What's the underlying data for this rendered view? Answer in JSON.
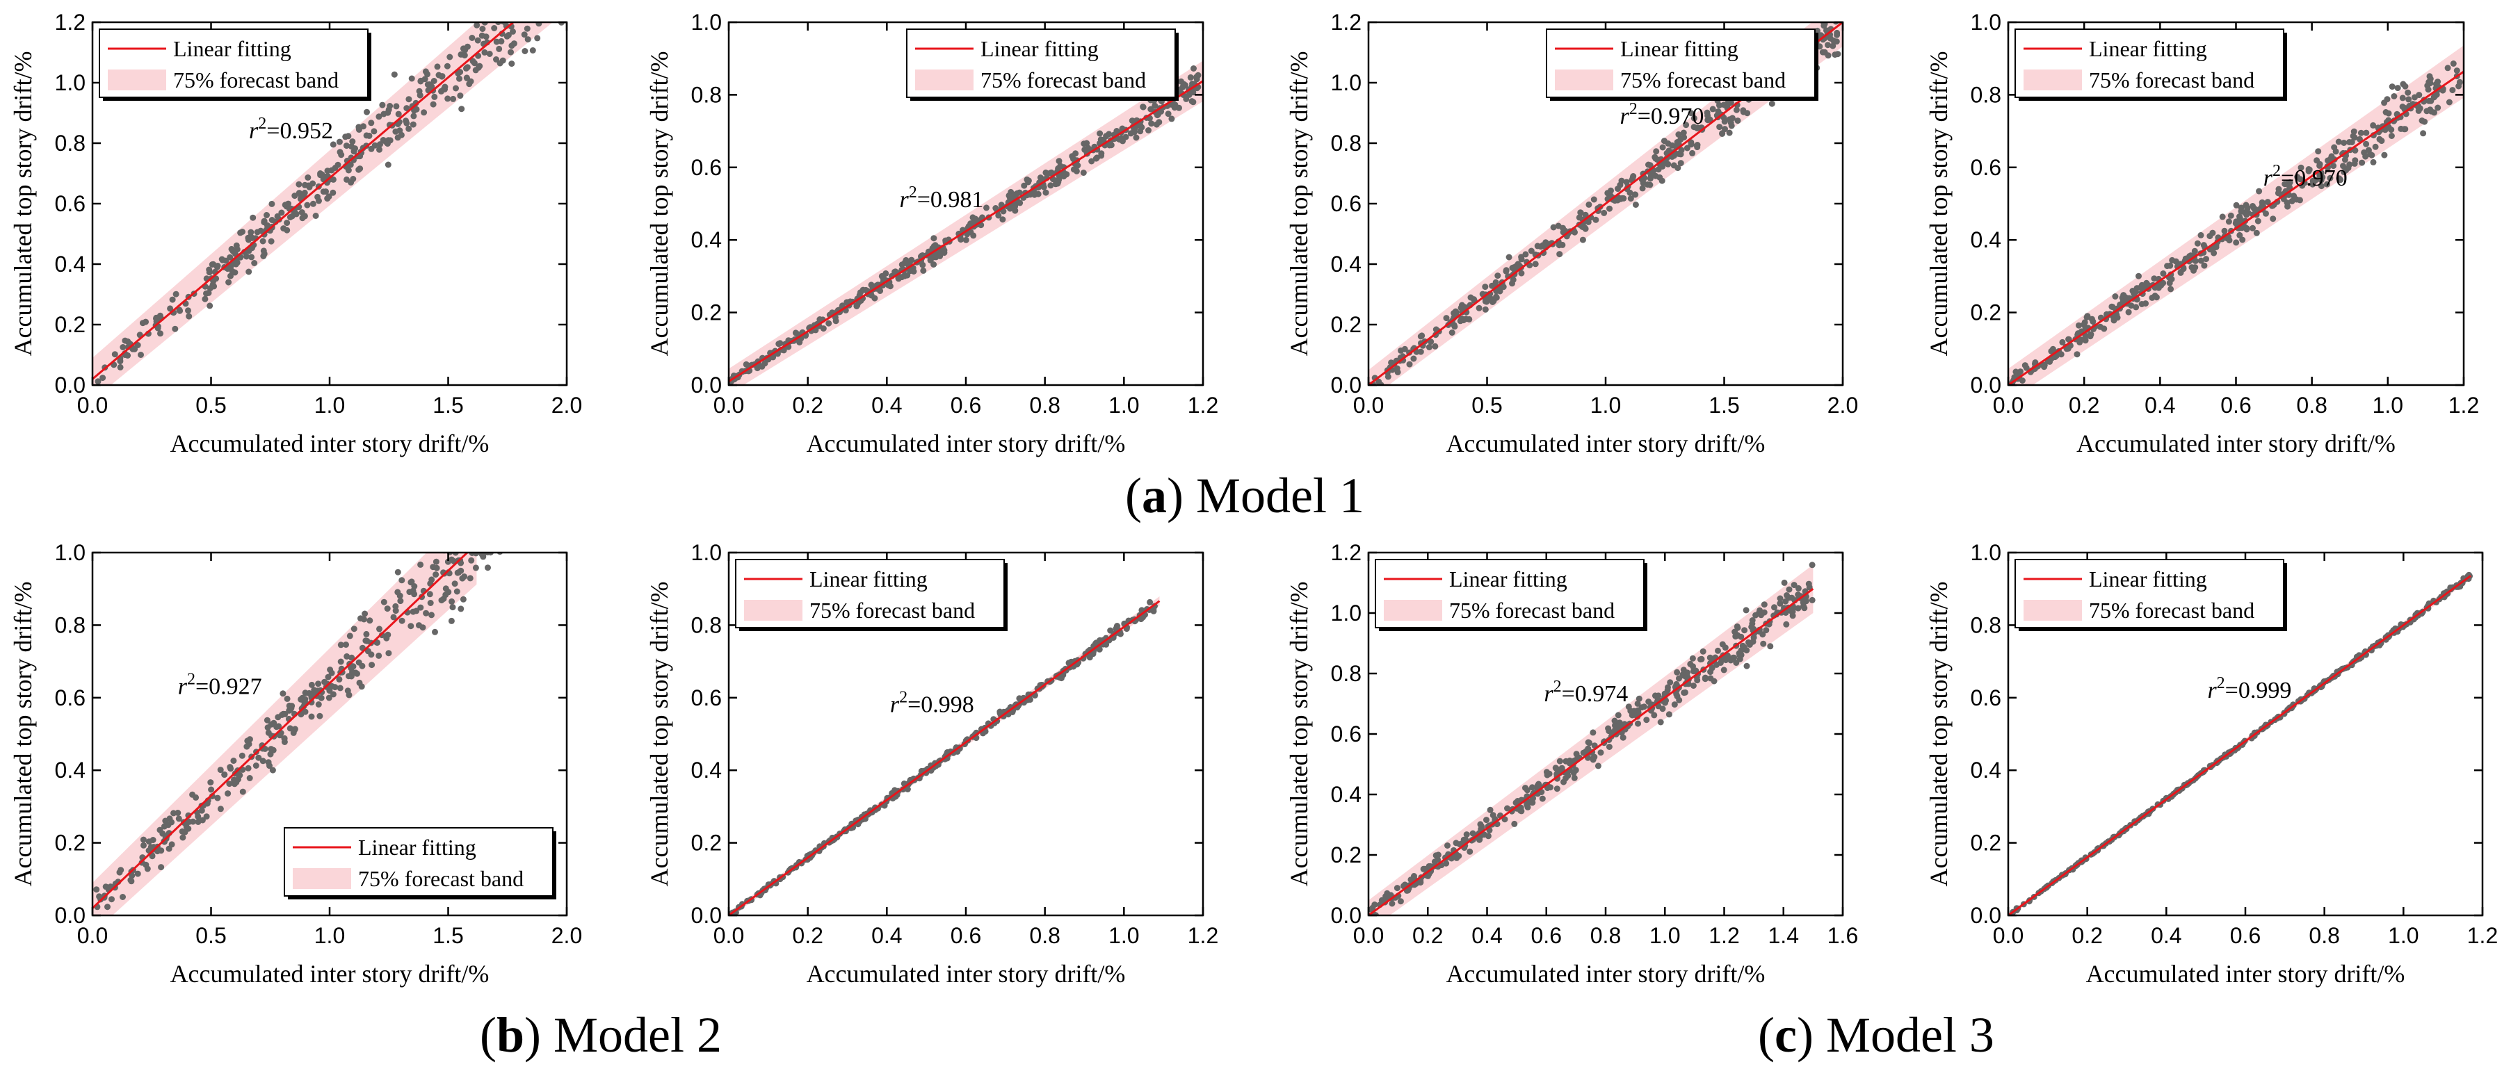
{
  "captions": {
    "a_letter": "a",
    "a_text": "Model 1",
    "b_letter": "b",
    "b_text": "Model 2",
    "c_letter": "c",
    "c_text": "Model 3"
  },
  "style": {
    "line_color": "#e8151b",
    "band_color": "#f8c8cc",
    "point_color": "#666666",
    "axis_color": "#000000"
  },
  "chart_data": [
    {
      "type": "scatter",
      "panel": "a1",
      "xlabel": "Accumulated inter story drift/%",
      "ylabel": "Accumulated top story drift/%",
      "xlim": [
        0,
        2.0
      ],
      "ylim": [
        0,
        1.2
      ],
      "xticks": [
        "0.0",
        "0.5",
        "1.0",
        "1.5",
        "2.0"
      ],
      "yticks": [
        "0.0",
        "0.2",
        "0.4",
        "0.6",
        "0.8",
        "1.0",
        "1.2"
      ],
      "legend": [
        "Linear fitting",
        "75% forecast band"
      ],
      "legend_position": "top-left",
      "fit": {
        "slope": 0.665,
        "intercept": 0.02,
        "x_end": 2.0,
        "band": 0.07
      },
      "r2_label": "=0.952",
      "r2_at": [
        0.33,
        0.68
      ],
      "points": {
        "n": 420,
        "xmax": 1.98,
        "spread": 0.11,
        "seed": 11
      }
    },
    {
      "type": "scatter",
      "panel": "a2",
      "xlabel": "Accumulated inter story drift/%",
      "ylabel": "Accumulated top story drift/%",
      "xlim": [
        0,
        1.2
      ],
      "ylim": [
        0,
        1.0
      ],
      "xticks": [
        "0.0",
        "0.2",
        "0.4",
        "0.6",
        "0.8",
        "1.0",
        "1.2"
      ],
      "yticks": [
        "0.0",
        "0.2",
        "0.4",
        "0.6",
        "0.8",
        "1.0"
      ],
      "legend": [
        "Linear fitting",
        "75% forecast band"
      ],
      "legend_position": "top-right",
      "fit": {
        "slope": 0.69,
        "intercept": 0.01,
        "x_end": 1.2,
        "band": 0.035
      },
      "r2_label": "=0.981",
      "r2_at": [
        0.36,
        0.49
      ],
      "points": {
        "n": 420,
        "xmax": 1.19,
        "spread": 0.035,
        "seed": 22
      }
    },
    {
      "type": "scatter",
      "panel": "a3",
      "xlabel": "Accumulated inter story drift/%",
      "ylabel": "Accumulated top story drift/%",
      "xlim": [
        0,
        2.0
      ],
      "ylim": [
        0,
        1.2
      ],
      "xticks": [
        "0.0",
        "0.5",
        "1.0",
        "1.5",
        "2.0"
      ],
      "yticks": [
        "0.0",
        "0.2",
        "0.4",
        "0.6",
        "0.8",
        "1.0",
        "1.2"
      ],
      "legend": [
        "Linear fitting",
        "75% forecast band"
      ],
      "legend_position": "top-right",
      "fit": {
        "slope": 0.6,
        "intercept": 0.0,
        "x_end": 2.0,
        "band": 0.05
      },
      "r2_label": "=0.970",
      "r2_at": [
        0.53,
        0.72
      ],
      "points": {
        "n": 420,
        "xmax": 1.98,
        "spread": 0.07,
        "seed": 33
      }
    },
    {
      "type": "scatter",
      "panel": "a4",
      "xlabel": "Accumulated inter story drift/%",
      "ylabel": "Accumulated top story drift/%",
      "xlim": [
        0,
        1.2
      ],
      "ylim": [
        0,
        1.0
      ],
      "xticks": [
        "0.0",
        "0.2",
        "0.4",
        "0.6",
        "0.8",
        "1.0",
        "1.2"
      ],
      "yticks": [
        "0.0",
        "0.2",
        "0.4",
        "0.6",
        "0.8",
        "1.0"
      ],
      "legend": [
        "Linear fitting",
        "75% forecast band"
      ],
      "legend_position": "top-left",
      "fit": {
        "slope": 0.72,
        "intercept": 0.0,
        "x_end": 1.2,
        "band": 0.045
      },
      "r2_label": "=0.970",
      "r2_at": [
        0.56,
        0.55
      ],
      "points": {
        "n": 420,
        "xmax": 1.19,
        "spread": 0.06,
        "seed": 44
      }
    },
    {
      "type": "scatter",
      "panel": "b1",
      "xlabel": "Accumulated inter story drift/%",
      "ylabel": "Accumulated top story drift/%",
      "xlim": [
        0,
        2.0
      ],
      "ylim": [
        0,
        1.0
      ],
      "xticks": [
        "0.0",
        "0.5",
        "1.0",
        "1.5",
        "2.0"
      ],
      "yticks": [
        "0.0",
        "0.2",
        "0.4",
        "0.6",
        "0.8",
        "1.0"
      ],
      "legend": [
        "Linear fitting",
        "75% forecast band"
      ],
      "legend_position": "bottom-right",
      "fit": {
        "slope": 0.62,
        "intercept": 0.02,
        "x_end": 1.62,
        "band": 0.07
      },
      "r2_label": "=0.927",
      "r2_at": [
        0.18,
        0.61
      ],
      "points": {
        "n": 400,
        "xmax": 1.9,
        "spread": 0.1,
        "seed": 55
      }
    },
    {
      "type": "scatter",
      "panel": "b2",
      "xlabel": "Accumulated inter story drift/%",
      "ylabel": "Accumulated top story drift/%",
      "xlim": [
        0,
        1.2
      ],
      "ylim": [
        0,
        1.0
      ],
      "xticks": [
        "0.0",
        "0.2",
        "0.4",
        "0.6",
        "0.8",
        "1.0",
        "1.2"
      ],
      "yticks": [
        "0.0",
        "0.2",
        "0.4",
        "0.6",
        "0.8",
        "1.0"
      ],
      "legend": [
        "Linear fitting",
        "75% forecast band"
      ],
      "legend_position": "top-left",
      "fit": {
        "slope": 0.795,
        "intercept": 0.0,
        "x_end": 1.09,
        "band": 0.008
      },
      "r2_label": "=0.998",
      "r2_at": [
        0.34,
        0.56
      ],
      "points": {
        "n": 350,
        "xmax": 1.08,
        "spread": 0.012,
        "seed": 66
      }
    },
    {
      "type": "scatter",
      "panel": "c1",
      "xlabel": "Accumulated inter story drift/%",
      "ylabel": "Accumulated top story drift/%",
      "xlim": [
        0,
        1.6
      ],
      "ylim": [
        0,
        1.2
      ],
      "xticks": [
        "0.0",
        "0.2",
        "0.4",
        "0.6",
        "0.8",
        "1.0",
        "1.2",
        "1.4",
        "1.6"
      ],
      "yticks": [
        "0.0",
        "0.2",
        "0.4",
        "0.6",
        "0.8",
        "1.0",
        "1.2"
      ],
      "legend": [
        "Linear fitting",
        "75% forecast band"
      ],
      "legend_position": "top-left",
      "fit": {
        "slope": 0.72,
        "intercept": 0.0,
        "x_end": 1.5,
        "band": 0.05
      },
      "r2_label": "=0.974",
      "r2_at": [
        0.37,
        0.59
      ],
      "points": {
        "n": 420,
        "xmax": 1.5,
        "spread": 0.06,
        "seed": 77
      }
    },
    {
      "type": "scatter",
      "panel": "c2",
      "xlabel": "Accumulated inter story drift/%",
      "ylabel": "Accumulated top story drift/%",
      "xlim": [
        0,
        1.2
      ],
      "ylim": [
        0,
        1.0
      ],
      "xticks": [
        "0.0",
        "0.2",
        "0.4",
        "0.6",
        "0.8",
        "1.0",
        "1.2"
      ],
      "yticks": [
        "0.0",
        "0.2",
        "0.4",
        "0.6",
        "0.8",
        "1.0"
      ],
      "legend": [
        "Linear fitting",
        "75% forecast band"
      ],
      "legend_position": "top-left",
      "fit": {
        "slope": 0.8,
        "intercept": 0.0,
        "x_end": 1.17,
        "band": 0.006
      },
      "r2_label": "=0.999",
      "r2_at": [
        0.42,
        0.6
      ],
      "points": {
        "n": 350,
        "xmax": 1.17,
        "spread": 0.006,
        "seed": 88
      }
    }
  ]
}
